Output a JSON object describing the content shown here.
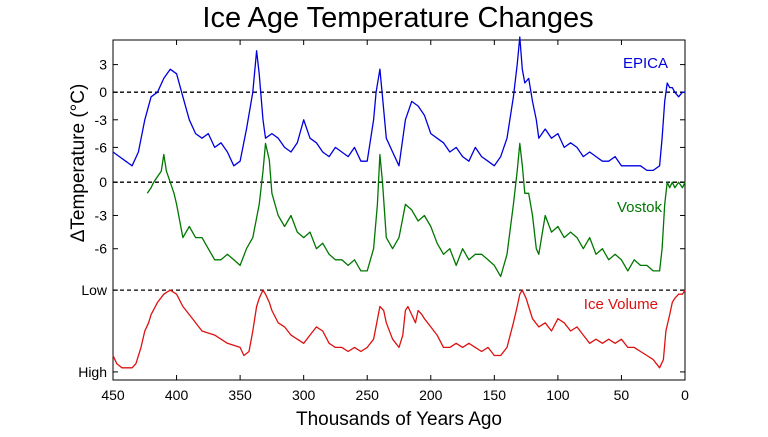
{
  "chart_data": {
    "type": "line",
    "title": "Ice Age Temperature Changes",
    "xlabel": "Thousands of Years Ago",
    "ylabel": "ΔTemperature (°C)",
    "xlim": [
      450,
      0
    ],
    "x_ticks": [
      "450",
      "400",
      "350",
      "300",
      "250",
      "200",
      "150",
      "100",
      "50",
      "0"
    ],
    "x_tick_values": [
      450,
      400,
      350,
      300,
      250,
      200,
      150,
      100,
      50,
      0
    ],
    "grid": false,
    "legend_placement": "inline labels at right",
    "reference_lines": "dashed zero / Low lines for each series",
    "panels": [
      {
        "series_name": "EPICA",
        "color": "#0000dd",
        "unit": "°C",
        "y_ticks": [
          "3",
          "0",
          "-3",
          "-6"
        ],
        "y_tick_values": [
          3,
          0,
          -3,
          -6
        ],
        "ylim": [
          -9,
          6
        ],
        "reference_value": 0,
        "x": [
          450,
          445,
          440,
          435,
          430,
          425,
          420,
          415,
          410,
          405,
          400,
          395,
          390,
          385,
          380,
          375,
          370,
          365,
          360,
          355,
          350,
          345,
          340,
          337,
          335,
          332,
          330,
          325,
          320,
          315,
          310,
          305,
          300,
          295,
          290,
          285,
          280,
          275,
          270,
          265,
          260,
          255,
          250,
          245,
          243,
          240,
          238,
          235,
          230,
          225,
          220,
          215,
          210,
          205,
          200,
          195,
          190,
          185,
          180,
          175,
          170,
          165,
          160,
          155,
          150,
          145,
          140,
          135,
          132,
          130,
          128,
          126,
          123,
          120,
          117,
          115,
          110,
          105,
          100,
          95,
          90,
          85,
          80,
          75,
          70,
          65,
          60,
          55,
          50,
          45,
          40,
          35,
          30,
          25,
          20,
          18,
          16,
          14,
          12,
          10,
          8,
          5,
          2,
          0
        ],
        "values": [
          -6.5,
          -7,
          -7.5,
          -8,
          -6.5,
          -3,
          -0.5,
          0,
          1.5,
          2.5,
          2,
          -0.5,
          -3,
          -4.5,
          -5,
          -4.5,
          -6,
          -5.5,
          -6.5,
          -8,
          -7.5,
          -4,
          0,
          4.5,
          2,
          -3,
          -5,
          -4.5,
          -5,
          -6,
          -6.5,
          -5.5,
          -3,
          -5,
          -5.5,
          -6.5,
          -7,
          -6,
          -6.5,
          -7,
          -6,
          -7.5,
          -7.5,
          -3,
          0,
          2.5,
          -0.5,
          -5,
          -6.5,
          -8,
          -3,
          -1,
          -1.5,
          -2.5,
          -4.5,
          -5,
          -5.5,
          -6.5,
          -6,
          -7,
          -7.5,
          -6,
          -7,
          -7.5,
          -8,
          -7,
          -5,
          -0.5,
          3,
          6,
          2.5,
          1,
          1.5,
          -1,
          -3,
          -5,
          -4,
          -5,
          -4.5,
          -6,
          -5.5,
          -6,
          -7,
          -6.5,
          -7,
          -7.5,
          -7.5,
          -7,
          -8,
          -8,
          -8,
          -8,
          -8.5,
          -8.5,
          -8,
          -5,
          -1,
          1,
          0.5,
          0.5,
          0,
          -0.5,
          0,
          0
        ]
      },
      {
        "series_name": "Vostok",
        "color": "#007700",
        "unit": "°C",
        "y_ticks": [
          "0",
          "-3",
          "-6"
        ],
        "y_tick_values": [
          0,
          -3,
          -6
        ],
        "ylim": [
          -9,
          2
        ],
        "reference_value": 0,
        "x": [
          423,
          420,
          418,
          415,
          412,
          410,
          408,
          405,
          402,
          400,
          395,
          390,
          385,
          380,
          375,
          370,
          365,
          360,
          355,
          350,
          345,
          340,
          335,
          332,
          330,
          327,
          325,
          320,
          315,
          310,
          305,
          300,
          295,
          290,
          285,
          280,
          275,
          270,
          265,
          260,
          255,
          250,
          245,
          242,
          240,
          238,
          235,
          230,
          225,
          220,
          215,
          210,
          205,
          200,
          195,
          190,
          185,
          180,
          175,
          170,
          165,
          160,
          155,
          150,
          145,
          140,
          135,
          132,
          130,
          128,
          126,
          123,
          120,
          117,
          115,
          110,
          105,
          100,
          95,
          90,
          85,
          80,
          75,
          70,
          65,
          60,
          55,
          50,
          45,
          40,
          35,
          30,
          25,
          20,
          18,
          16,
          14,
          12,
          10,
          8,
          5,
          2,
          0
        ],
        "values": [
          -1,
          -0.5,
          0,
          0.5,
          1,
          2.5,
          1,
          0,
          -1,
          -2,
          -5,
          -4,
          -5,
          -5,
          -6,
          -7,
          -7,
          -6.5,
          -7,
          -7.5,
          -6,
          -5,
          -2,
          1,
          3.5,
          2,
          -1,
          -3,
          -4,
          -3,
          -4.5,
          -5,
          -4.5,
          -6,
          -5.5,
          -6.5,
          -7,
          -7,
          -7.5,
          -7,
          -8,
          -8,
          -6,
          -2,
          2.5,
          0,
          -5,
          -6,
          -5,
          -2,
          -2.5,
          -3.5,
          -3,
          -4,
          -5.5,
          -6.5,
          -6,
          -7.5,
          -6,
          -7,
          -6.5,
          -6.5,
          -7,
          -7.5,
          -8.5,
          -6.5,
          -2,
          1,
          3.5,
          1.5,
          -1,
          -1,
          -3,
          -6,
          -6.5,
          -3,
          -4.5,
          -4,
          -5,
          -4.5,
          -5,
          -6,
          -5,
          -6.5,
          -6,
          -7,
          -6.5,
          -7,
          -8,
          -7,
          -7.5,
          -7.5,
          -8,
          -8,
          -6,
          -2,
          0,
          -0.5,
          0,
          -0.5,
          0,
          -0.5,
          0
        ]
      },
      {
        "series_name": "Ice Volume",
        "color": "#dd1111",
        "unit": "",
        "y_ticks": [
          "Low",
          "High"
        ],
        "y_tick_values": [
          1,
          0
        ],
        "ylim": [
          -0.05,
          1.05
        ],
        "reference_value": 1,
        "x": [
          450,
          447,
          443,
          440,
          435,
          432,
          428,
          425,
          422,
          420,
          415,
          410,
          405,
          400,
          395,
          390,
          380,
          370,
          360,
          350,
          347,
          343,
          340,
          337,
          335,
          332,
          330,
          327,
          325,
          320,
          315,
          310,
          305,
          300,
          295,
          290,
          285,
          280,
          275,
          270,
          265,
          260,
          255,
          250,
          245,
          240,
          237,
          235,
          230,
          225,
          222,
          220,
          218,
          215,
          212,
          210,
          207,
          205,
          200,
          195,
          190,
          185,
          180,
          175,
          170,
          165,
          160,
          155,
          150,
          145,
          140,
          135,
          132,
          130,
          128,
          125,
          122,
          120,
          115,
          110,
          105,
          100,
          95,
          90,
          85,
          80,
          75,
          70,
          65,
          60,
          55,
          50,
          45,
          40,
          35,
          30,
          25,
          20,
          17,
          15,
          12,
          10,
          8,
          5,
          2,
          0
        ],
        "values": [
          0.2,
          0.1,
          0.05,
          0.05,
          0.05,
          0.1,
          0.3,
          0.5,
          0.6,
          0.7,
          0.85,
          0.95,
          1,
          0.95,
          0.8,
          0.7,
          0.5,
          0.45,
          0.35,
          0.3,
          0.2,
          0.25,
          0.5,
          0.8,
          0.9,
          1,
          0.95,
          0.85,
          0.75,
          0.6,
          0.55,
          0.45,
          0.4,
          0.35,
          0.45,
          0.55,
          0.5,
          0.35,
          0.3,
          0.3,
          0.25,
          0.3,
          0.25,
          0.3,
          0.4,
          0.8,
          0.75,
          0.6,
          0.4,
          0.3,
          0.45,
          0.75,
          0.8,
          0.7,
          0.6,
          0.75,
          0.7,
          0.65,
          0.55,
          0.45,
          0.3,
          0.3,
          0.35,
          0.3,
          0.35,
          0.3,
          0.25,
          0.3,
          0.2,
          0.2,
          0.3,
          0.6,
          0.8,
          0.95,
          1,
          0.9,
          0.75,
          0.65,
          0.55,
          0.6,
          0.5,
          0.65,
          0.6,
          0.5,
          0.55,
          0.45,
          0.35,
          0.4,
          0.35,
          0.4,
          0.35,
          0.4,
          0.3,
          0.3,
          0.25,
          0.2,
          0.15,
          0.05,
          0.15,
          0.5,
          0.7,
          0.85,
          0.9,
          0.95,
          0.95,
          1
        ]
      }
    ]
  }
}
